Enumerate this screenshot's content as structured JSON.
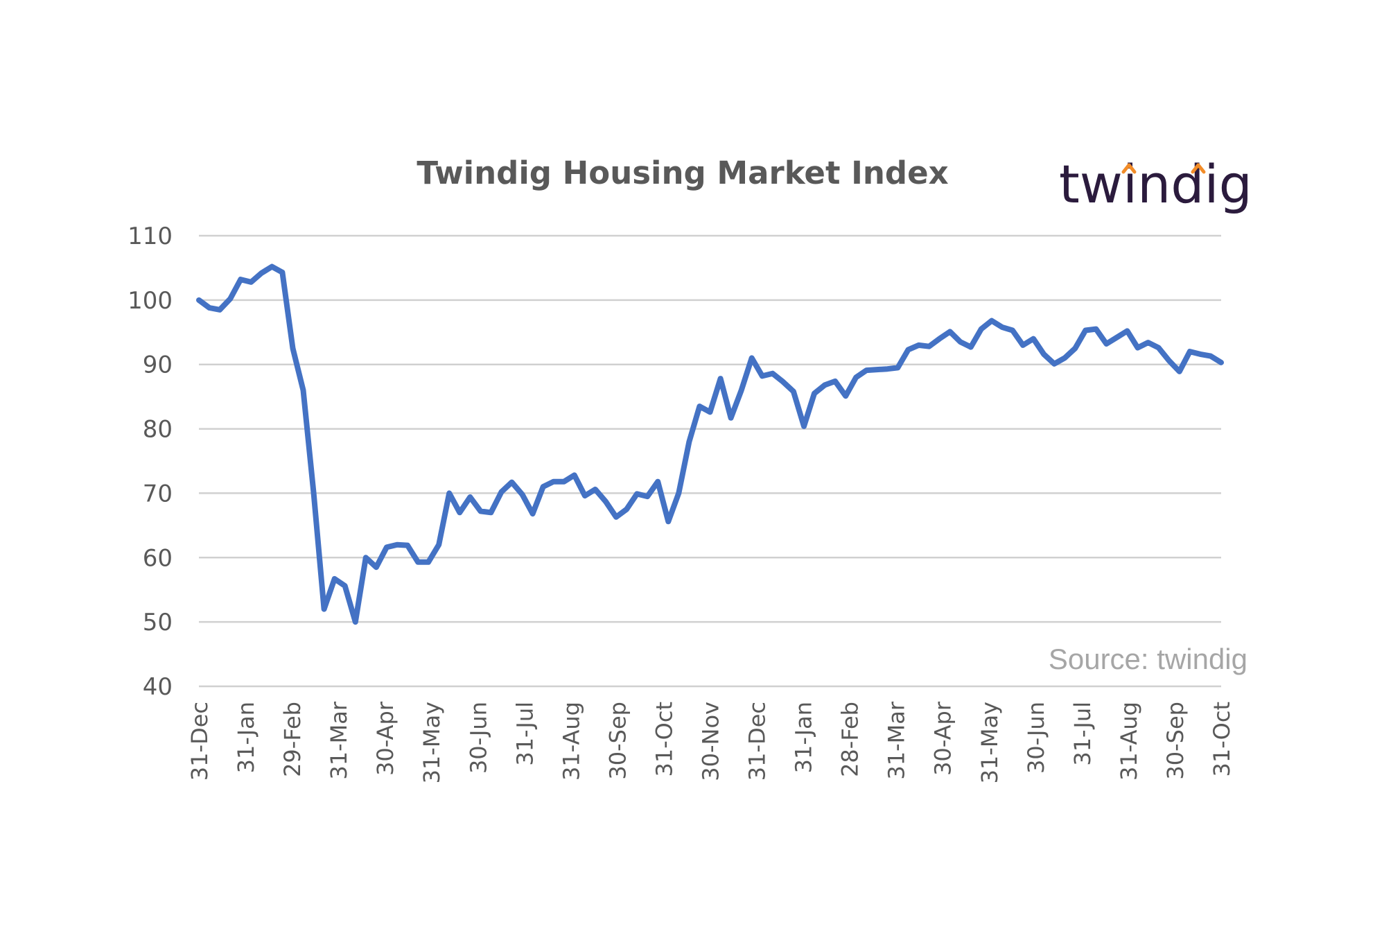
{
  "logo": {
    "text": "twindig",
    "accent_color": "#f28c28",
    "text_color": "#2b1b3d"
  },
  "source_note": "Source: twindig",
  "chart_data": {
    "type": "line",
    "title": "Twindig Housing Market Index",
    "xlabel": "",
    "ylabel": "",
    "ylim": [
      40,
      110
    ],
    "yticks": [
      40,
      50,
      60,
      70,
      80,
      90,
      100,
      110
    ],
    "grid": true,
    "legend": "none",
    "line_color": "#4472c4",
    "x_tick_labels": [
      "31-Dec",
      "31-Jan",
      "29-Feb",
      "31-Mar",
      "30-Apr",
      "31-May",
      "30-Jun",
      "31-Jul",
      "31-Aug",
      "30-Sep",
      "31-Oct",
      "30-Nov",
      "31-Dec",
      "31-Jan",
      "28-Feb",
      "31-Mar",
      "30-Apr",
      "31-May",
      "30-Jun",
      "31-Jul",
      "31-Aug",
      "30-Sep",
      "31-Oct"
    ],
    "series": [
      {
        "values": [
          100.0,
          98.8,
          98.5,
          100.2,
          103.2,
          102.8,
          104.2,
          105.2,
          104.3,
          92.5,
          86.0,
          70.0,
          52.0,
          56.7,
          55.6,
          50.0,
          60.0,
          58.5,
          61.6,
          62.0,
          61.9,
          59.3,
          59.3,
          62.0,
          70.0,
          67.0,
          69.4,
          67.2,
          67.0,
          70.2,
          71.7,
          69.8,
          66.8,
          71.0,
          71.8,
          71.8,
          72.8,
          69.6,
          70.6,
          68.7,
          66.3,
          67.5,
          69.9,
          69.5,
          71.8,
          65.6,
          70.0,
          78.0,
          83.5,
          82.6,
          87.8,
          81.7,
          86.0,
          91.0,
          88.2,
          88.6,
          87.3,
          85.8,
          80.4,
          85.5,
          86.8,
          87.4,
          85.1,
          88.0,
          89.1,
          89.2,
          89.3,
          89.5,
          92.3,
          93.0,
          92.8,
          94.0,
          95.1,
          93.5,
          92.7,
          95.5,
          96.8,
          95.8,
          95.3,
          93.0,
          94.0,
          91.6,
          90.1,
          91.0,
          92.5,
          95.3,
          95.5,
          93.2,
          94.2,
          95.2,
          92.6,
          93.4,
          92.6,
          90.6,
          88.9,
          92.0,
          91.6,
          91.3,
          90.3
        ]
      }
    ]
  }
}
